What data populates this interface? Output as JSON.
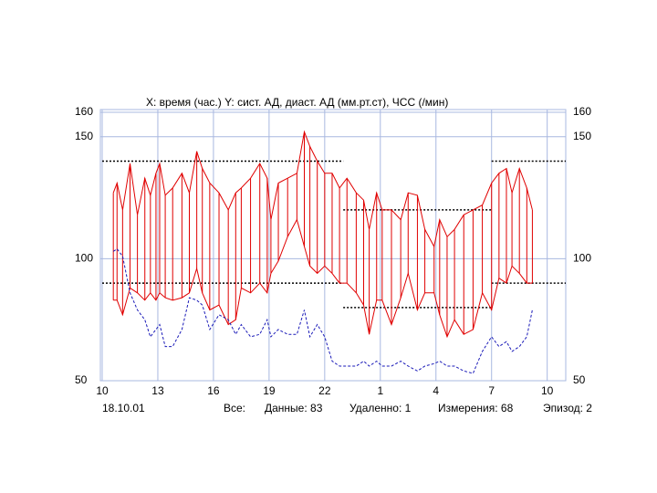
{
  "chart_data": {
    "type": "line",
    "title": "X: время (час.)  Y: сист. АД, диаст. АД (мм.рт.ст), ЧСС (/мин)",
    "footer": [
      "18.10.01",
      "Все:",
      "Данные: 83",
      "Удаленно: 1",
      "Измерения: 68",
      "Эпизод: 2"
    ],
    "x": [
      10.6,
      10.8,
      11.1,
      11.5,
      11.9,
      12.3,
      12.6,
      12.9,
      13.1,
      13.4,
      13.8,
      14.3,
      14.7,
      15.1,
      15.4,
      15.8,
      16.3,
      16.8,
      17.2,
      17.5,
      18.0,
      18.5,
      18.9,
      19.1,
      19.5,
      20.0,
      20.5,
      20.9,
      21.2,
      21.6,
      22.0,
      22.4,
      22.8,
      23.2,
      23.7,
      24.1,
      24.4,
      24.8,
      25.1,
      25.6,
      26.1,
      26.5,
      27.0,
      27.4,
      27.9,
      28.2,
      28.6,
      29.0,
      29.5,
      30.0,
      30.5,
      31.0,
      31.4,
      31.8,
      32.1,
      32.5,
      32.9,
      33.2
    ],
    "series": [
      {
        "color": "#e00000",
        "values": [
          127,
          131,
          120,
          139,
          118,
          133,
          126,
          135,
          139,
          126,
          129,
          135,
          127,
          144,
          137,
          131,
          127,
          120,
          127,
          129,
          133,
          139,
          133,
          116,
          131,
          133,
          135,
          152,
          146,
          140,
          135,
          135,
          129,
          133,
          127,
          124,
          112,
          127,
          120,
          120,
          116,
          127,
          126,
          112,
          105,
          116,
          109,
          112,
          118,
          120,
          122,
          131,
          135,
          137,
          127,
          137,
          129,
          120
        ]
      },
      {
        "color": "#e00000",
        "values": [
          83,
          83,
          77,
          88,
          86,
          83,
          86,
          83,
          86,
          84,
          83,
          84,
          86,
          96,
          86,
          79,
          81,
          73,
          75,
          88,
          86,
          90,
          86,
          94,
          99,
          109,
          116,
          105,
          97,
          94,
          97,
          94,
          90,
          90,
          86,
          81,
          69,
          83,
          83,
          73,
          84,
          94,
          79,
          86,
          86,
          77,
          68,
          75,
          69,
          71,
          86,
          79,
          92,
          90,
          97,
          94,
          90,
          90
        ]
      },
      {
        "color": "#1a1ab8",
        "style": "dashed",
        "values": [
          103,
          104,
          101,
          86,
          79,
          75,
          68,
          71,
          73,
          64,
          64,
          71,
          84,
          83,
          81,
          71,
          77,
          75,
          69,
          73,
          68,
          69,
          75,
          68,
          71,
          69,
          69,
          79,
          68,
          73,
          68,
          58,
          56,
          56,
          56,
          58,
          56,
          58,
          56,
          56,
          58,
          56,
          54,
          56,
          57,
          58,
          56,
          56,
          54,
          53,
          62,
          68,
          64,
          66,
          62,
          64,
          68,
          79
        ]
      }
    ],
    "reference_lines": [
      {
        "y": 140,
        "x": [
          10,
          23
        ]
      },
      {
        "y": 90,
        "x": [
          10,
          23
        ]
      },
      {
        "y": 120,
        "x": [
          23,
          31
        ]
      },
      {
        "y": 80,
        "x": [
          23,
          31
        ]
      },
      {
        "y": 140,
        "x": [
          31,
          35
        ]
      },
      {
        "y": 90,
        "x": [
          31,
          35
        ]
      }
    ],
    "xlim": [
      10,
      35
    ],
    "xticks": [
      10,
      13,
      16,
      19,
      22,
      {
        "value": 25,
        "label": "1"
      },
      {
        "value": 28,
        "label": "4"
      },
      {
        "value": 31,
        "label": "7"
      },
      {
        "value": 34,
        "label": "10"
      }
    ],
    "ylim": [
      50,
      160
    ],
    "yticks": [
      50,
      100,
      150,
      160
    ],
    "grid": true
  }
}
